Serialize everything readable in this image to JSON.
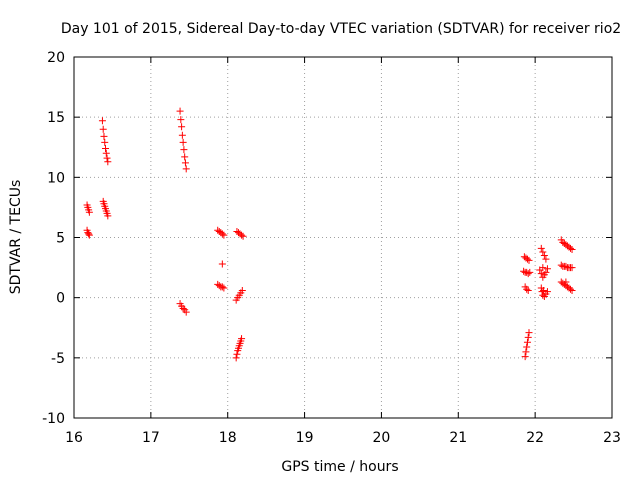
{
  "chart_data": {
    "type": "scatter",
    "title": "Day 101 of 2015, Sidereal Day-to-day VTEC variation (SDTVAR) for receiver rio2",
    "xlabel": "GPS time / hours",
    "ylabel": "SDTVAR / TECUs",
    "xlim": [
      16,
      23
    ],
    "ylim": [
      -10,
      20
    ],
    "xticks": [
      16,
      17,
      18,
      19,
      20,
      21,
      22,
      23
    ],
    "yticks": [
      -10,
      -5,
      0,
      5,
      10,
      15,
      20
    ],
    "xtick_labels": [
      "16",
      "17",
      "18",
      "19",
      "20",
      "21",
      "22",
      "23"
    ],
    "ytick_labels": [
      "-10",
      "-5",
      "0",
      "5",
      "10",
      "15",
      "20"
    ],
    "grid": true,
    "marker": "+",
    "series": [
      {
        "name": "SDTVAR",
        "color": "#ff0000",
        "points": [
          [
            16.17,
            7.7
          ],
          [
            16.18,
            7.5
          ],
          [
            16.19,
            7.3
          ],
          [
            16.2,
            7.1
          ],
          [
            16.17,
            5.6
          ],
          [
            16.18,
            5.4
          ],
          [
            16.19,
            5.3
          ],
          [
            16.2,
            5.2
          ],
          [
            16.37,
            14.7
          ],
          [
            16.38,
            14.0
          ],
          [
            16.39,
            13.4
          ],
          [
            16.4,
            12.9
          ],
          [
            16.41,
            12.4
          ],
          [
            16.42,
            12.0
          ],
          [
            16.43,
            11.6
          ],
          [
            16.44,
            11.3
          ],
          [
            16.38,
            8.0
          ],
          [
            16.39,
            7.8
          ],
          [
            16.4,
            7.6
          ],
          [
            16.41,
            7.4
          ],
          [
            16.42,
            7.2
          ],
          [
            16.43,
            7.0
          ],
          [
            16.44,
            6.8
          ],
          [
            17.38,
            15.5
          ],
          [
            17.39,
            14.8
          ],
          [
            17.4,
            14.2
          ],
          [
            17.41,
            13.5
          ],
          [
            17.42,
            12.9
          ],
          [
            17.43,
            12.3
          ],
          [
            17.44,
            11.7
          ],
          [
            17.45,
            11.2
          ],
          [
            17.46,
            10.7
          ],
          [
            17.38,
            -0.5
          ],
          [
            17.4,
            -0.7
          ],
          [
            17.42,
            -0.9
          ],
          [
            17.44,
            -1.0
          ],
          [
            17.46,
            -1.2
          ],
          [
            17.87,
            5.6
          ],
          [
            17.89,
            5.5
          ],
          [
            17.91,
            5.4
          ],
          [
            17.93,
            5.3
          ],
          [
            17.95,
            5.2
          ],
          [
            17.87,
            1.1
          ],
          [
            17.89,
            1.0
          ],
          [
            17.91,
            0.9
          ],
          [
            17.93,
            0.9
          ],
          [
            17.95,
            0.8
          ],
          [
            17.93,
            2.8
          ],
          [
            18.12,
            5.5
          ],
          [
            18.14,
            5.4
          ],
          [
            18.16,
            5.3
          ],
          [
            18.18,
            5.2
          ],
          [
            18.2,
            5.1
          ],
          [
            18.11,
            -0.2
          ],
          [
            18.13,
            0.0
          ],
          [
            18.15,
            0.2
          ],
          [
            18.17,
            0.4
          ],
          [
            18.19,
            0.6
          ],
          [
            18.11,
            -5.0
          ],
          [
            18.12,
            -4.7
          ],
          [
            18.13,
            -4.4
          ],
          [
            18.14,
            -4.2
          ],
          [
            18.15,
            -4.0
          ],
          [
            18.16,
            -3.8
          ],
          [
            18.17,
            -3.6
          ],
          [
            18.18,
            -3.4
          ],
          [
            21.86,
            3.4
          ],
          [
            21.88,
            3.3
          ],
          [
            21.9,
            3.2
          ],
          [
            21.92,
            3.1
          ],
          [
            21.85,
            2.2
          ],
          [
            21.87,
            2.1
          ],
          [
            21.89,
            2.1
          ],
          [
            21.91,
            2.0
          ],
          [
            21.93,
            2.1
          ],
          [
            21.87,
            0.9
          ],
          [
            21.89,
            0.7
          ],
          [
            21.91,
            0.6
          ],
          [
            21.87,
            -4.9
          ],
          [
            21.88,
            -4.5
          ],
          [
            21.89,
            -4.1
          ],
          [
            21.9,
            -3.7
          ],
          [
            21.91,
            -3.3
          ],
          [
            21.92,
            -2.9
          ],
          [
            22.08,
            4.1
          ],
          [
            22.1,
            3.8
          ],
          [
            22.12,
            3.5
          ],
          [
            22.14,
            3.2
          ],
          [
            22.06,
            2.3
          ],
          [
            22.08,
            2.0
          ],
          [
            22.1,
            1.7
          ],
          [
            22.12,
            1.9
          ],
          [
            22.14,
            2.1
          ],
          [
            22.16,
            2.4
          ],
          [
            22.1,
            2.5
          ],
          [
            22.08,
            0.8
          ],
          [
            22.09,
            0.5
          ],
          [
            22.1,
            0.2
          ],
          [
            22.12,
            0.1
          ],
          [
            22.14,
            0.3
          ],
          [
            22.16,
            0.5
          ],
          [
            22.11,
            0.6
          ],
          [
            22.34,
            4.8
          ],
          [
            22.36,
            4.6
          ],
          [
            22.38,
            4.5
          ],
          [
            22.4,
            4.4
          ],
          [
            22.42,
            4.3
          ],
          [
            22.44,
            4.2
          ],
          [
            22.46,
            4.1
          ],
          [
            22.48,
            4.0
          ],
          [
            22.34,
            2.7
          ],
          [
            22.36,
            2.6
          ],
          [
            22.38,
            2.6
          ],
          [
            22.4,
            2.6
          ],
          [
            22.42,
            2.5
          ],
          [
            22.44,
            2.5
          ],
          [
            22.46,
            2.5
          ],
          [
            22.48,
            2.5
          ],
          [
            22.34,
            1.3
          ],
          [
            22.36,
            1.2
          ],
          [
            22.38,
            1.1
          ],
          [
            22.4,
            1.0
          ],
          [
            22.42,
            0.9
          ],
          [
            22.44,
            0.8
          ],
          [
            22.46,
            0.7
          ],
          [
            22.48,
            0.6
          ],
          [
            22.4,
            1.3
          ]
        ]
      }
    ]
  }
}
